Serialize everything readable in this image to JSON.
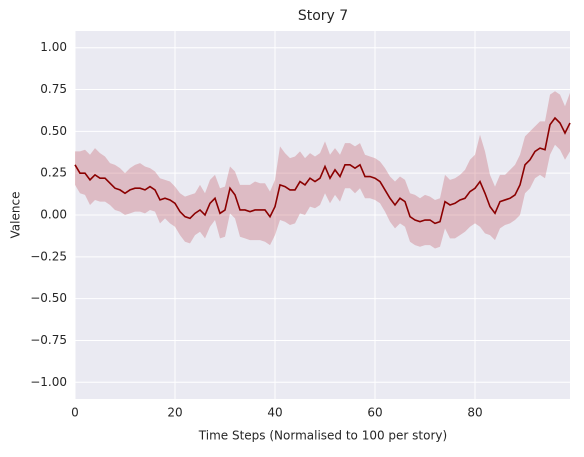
{
  "chart_data": {
    "type": "line",
    "title": "Story 7",
    "x_label": "Time Steps (Normalised to 100 per story)",
    "y_label": "Valence",
    "x": [
      0,
      1,
      2,
      3,
      4,
      5,
      6,
      7,
      8,
      9,
      10,
      11,
      12,
      13,
      14,
      15,
      16,
      17,
      18,
      19,
      20,
      21,
      22,
      23,
      24,
      25,
      26,
      27,
      28,
      29,
      30,
      31,
      32,
      33,
      34,
      35,
      36,
      37,
      38,
      39,
      40,
      41,
      42,
      43,
      44,
      45,
      46,
      47,
      48,
      49,
      50,
      51,
      52,
      53,
      54,
      55,
      56,
      57,
      58,
      59,
      60,
      61,
      62,
      63,
      64,
      65,
      66,
      67,
      68,
      69,
      70,
      71,
      72,
      73,
      74,
      75,
      76,
      77,
      78,
      79,
      80,
      81,
      82,
      83,
      84,
      85,
      86,
      87,
      88,
      89,
      90,
      91,
      92,
      93,
      94,
      95,
      96,
      97,
      98,
      99
    ],
    "series": [
      {
        "color": "#8b0000",
        "band_color": "#c0505a",
        "values": [
          0.3,
          0.25,
          0.25,
          0.21,
          0.24,
          0.22,
          0.22,
          0.19,
          0.16,
          0.15,
          0.13,
          0.15,
          0.16,
          0.16,
          0.15,
          0.17,
          0.15,
          0.09,
          0.1,
          0.09,
          0.07,
          0.02,
          -0.01,
          -0.02,
          0.01,
          0.03,
          0.0,
          0.07,
          0.1,
          0.01,
          0.03,
          0.16,
          0.12,
          0.03,
          0.03,
          0.02,
          0.03,
          0.03,
          0.03,
          -0.01,
          0.05,
          0.18,
          0.17,
          0.15,
          0.15,
          0.2,
          0.18,
          0.22,
          0.2,
          0.22,
          0.29,
          0.22,
          0.27,
          0.23,
          0.3,
          0.3,
          0.28,
          0.3,
          0.23,
          0.23,
          0.22,
          0.2,
          0.15,
          0.1,
          0.06,
          0.1,
          0.08,
          -0.01,
          -0.03,
          -0.04,
          -0.03,
          -0.03,
          -0.05,
          -0.04,
          0.08,
          0.06,
          0.07,
          0.09,
          0.1,
          0.14,
          0.16,
          0.2,
          0.13,
          0.05,
          0.01,
          0.08,
          0.09,
          0.1,
          0.12,
          0.18,
          0.3,
          0.33,
          0.38,
          0.4,
          0.39,
          0.54,
          0.58,
          0.55,
          0.49,
          0.55
        ],
        "upper": [
          0.38,
          0.38,
          0.39,
          0.36,
          0.4,
          0.37,
          0.35,
          0.31,
          0.3,
          0.28,
          0.25,
          0.28,
          0.3,
          0.31,
          0.29,
          0.28,
          0.26,
          0.22,
          0.21,
          0.2,
          0.17,
          0.13,
          0.11,
          0.12,
          0.13,
          0.18,
          0.13,
          0.21,
          0.24,
          0.16,
          0.17,
          0.29,
          0.26,
          0.18,
          0.18,
          0.18,
          0.2,
          0.19,
          0.19,
          0.14,
          0.21,
          0.41,
          0.37,
          0.34,
          0.35,
          0.38,
          0.34,
          0.37,
          0.35,
          0.37,
          0.44,
          0.36,
          0.4,
          0.36,
          0.43,
          0.43,
          0.41,
          0.43,
          0.36,
          0.35,
          0.34,
          0.32,
          0.28,
          0.23,
          0.2,
          0.23,
          0.21,
          0.13,
          0.12,
          0.1,
          0.12,
          0.11,
          0.09,
          0.1,
          0.24,
          0.21,
          0.22,
          0.24,
          0.27,
          0.33,
          0.36,
          0.48,
          0.38,
          0.24,
          0.17,
          0.24,
          0.24,
          0.27,
          0.3,
          0.36,
          0.47,
          0.5,
          0.53,
          0.56,
          0.56,
          0.72,
          0.74,
          0.72,
          0.65,
          0.73
        ],
        "lower": [
          0.18,
          0.13,
          0.12,
          0.06,
          0.09,
          0.08,
          0.08,
          0.06,
          0.03,
          0.02,
          0.0,
          0.01,
          0.02,
          0.02,
          0.01,
          0.03,
          0.02,
          -0.05,
          -0.02,
          -0.05,
          -0.07,
          -0.12,
          -0.16,
          -0.17,
          -0.12,
          -0.1,
          -0.14,
          -0.07,
          -0.03,
          -0.14,
          -0.13,
          0.01,
          -0.02,
          -0.13,
          -0.14,
          -0.15,
          -0.15,
          -0.15,
          -0.16,
          -0.18,
          -0.12,
          -0.03,
          -0.04,
          -0.06,
          -0.05,
          0.01,
          0.0,
          0.05,
          0.04,
          0.06,
          0.13,
          0.07,
          0.12,
          0.08,
          0.16,
          0.16,
          0.13,
          0.16,
          0.1,
          0.1,
          0.09,
          0.07,
          0.02,
          -0.04,
          -0.08,
          -0.05,
          -0.07,
          -0.16,
          -0.18,
          -0.19,
          -0.18,
          -0.18,
          -0.2,
          -0.19,
          -0.08,
          -0.14,
          -0.14,
          -0.12,
          -0.1,
          -0.07,
          -0.05,
          -0.07,
          -0.11,
          -0.12,
          -0.15,
          -0.08,
          -0.06,
          -0.05,
          -0.03,
          0.0,
          0.13,
          0.16,
          0.22,
          0.24,
          0.22,
          0.36,
          0.42,
          0.39,
          0.33,
          0.38
        ]
      }
    ],
    "xlim": [
      0,
      99
    ],
    "xticks": [
      0,
      20,
      40,
      60,
      80
    ],
    "ylim": [
      -1.1,
      1.1
    ],
    "yticks": [
      {
        "value": -1,
        "label": "−1.00"
      },
      {
        "value": -0.75,
        "label": "−0.75"
      },
      {
        "value": -0.5,
        "label": "−0.50"
      },
      {
        "value": -0.25,
        "label": "−0.25"
      },
      {
        "value": 0,
        "label": "0.00"
      },
      {
        "value": 0.25,
        "label": "0.25"
      },
      {
        "value": 0.5,
        "label": "0.50"
      },
      {
        "value": 0.75,
        "label": "0.75"
      },
      {
        "value": 1,
        "label": "1.00"
      }
    ],
    "grid": true,
    "background": "#eaeaf2"
  }
}
